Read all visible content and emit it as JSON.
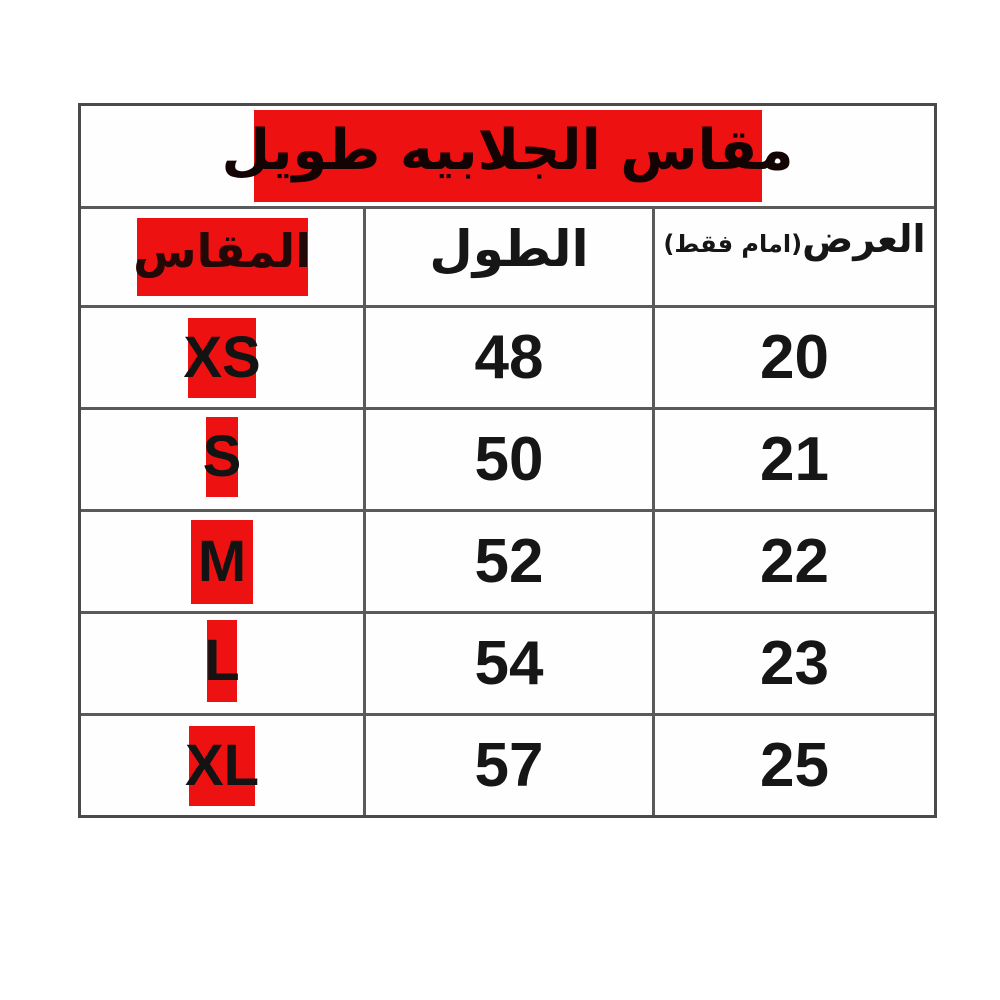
{
  "size_chart": {
    "title": "مقاس الجلابيه طويل",
    "columns": {
      "size_label": "المقاس",
      "length_label": "الطول",
      "width_label_main": "العرض",
      "width_label_note": "(امام فقط)"
    },
    "rows": [
      {
        "size": "XS",
        "length": "48",
        "width": "20"
      },
      {
        "size": "S",
        "length": "50",
        "width": "21"
      },
      {
        "size": "M",
        "length": "52",
        "width": "22"
      },
      {
        "size": "L",
        "length": "54",
        "width": "23"
      },
      {
        "size": "XL",
        "length": "57",
        "width": "25"
      }
    ],
    "colors": {
      "accent_red": "#ee1111",
      "grid_line": "#5a5a5a",
      "text_black": "#161616"
    }
  }
}
